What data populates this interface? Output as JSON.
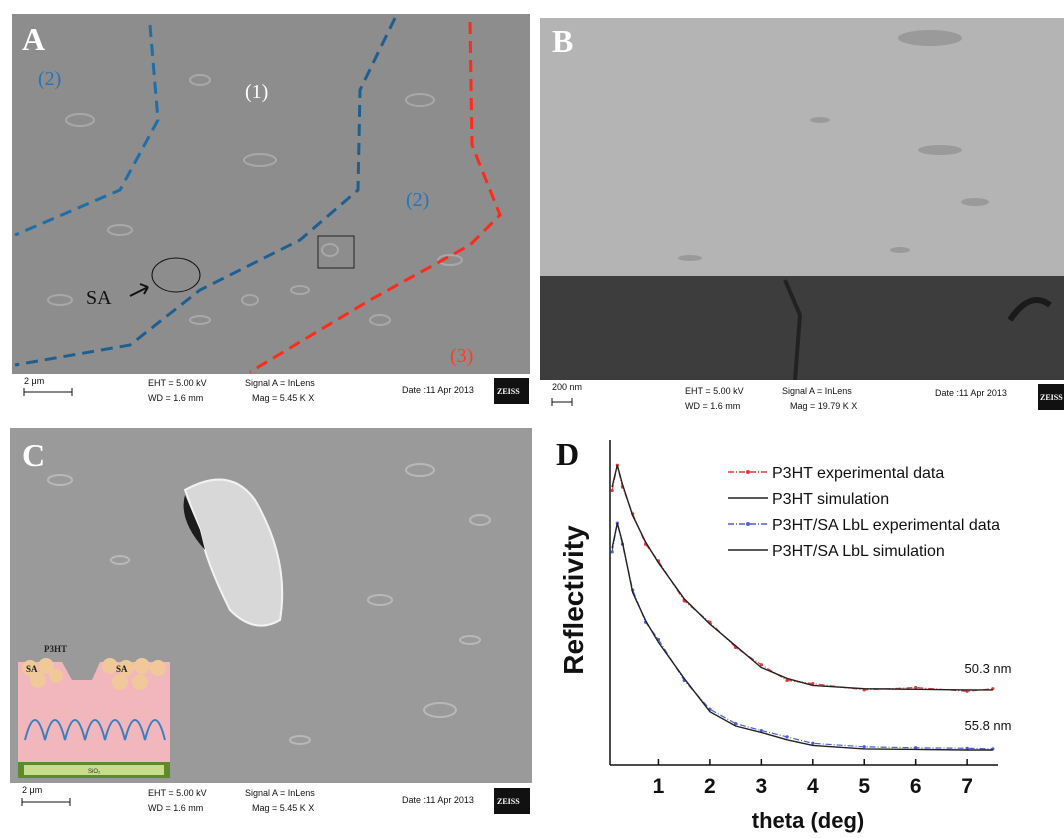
{
  "panels": {
    "a": {
      "label": "A",
      "regions": [
        "(2)",
        "(1)",
        "(2)",
        "(3)"
      ],
      "marker": "SA",
      "scale_bar": "2 μm",
      "info": [
        "EHT = 5.00 kV",
        "WD = 1.6 mm",
        "Signal A = InLens",
        "Mag = 5.45 K X",
        "Date :11 Apr 2013"
      ],
      "brand": "ZEISS"
    },
    "b": {
      "label": "B",
      "scale_bar": "200 nm",
      "info": [
        "EHT = 5.00 kV",
        "WD = 1.6 mm",
        "Signal A = InLens",
        "Mag = 19.79 K X",
        "Date :11 Apr 2013"
      ],
      "brand": "ZEISS"
    },
    "c": {
      "label": "C",
      "scale_bar": "2 μm",
      "info": [
        "EHT = 5.00 kV",
        "WD = 1.6 mm",
        "Signal A = InLens",
        "Mag = 5.45 K X",
        "Date :11 Apr 2013"
      ],
      "brand": "ZEISS",
      "inset": {
        "top_layer": "P3HT",
        "sa_labels": [
          "SA",
          "SA"
        ],
        "substrate": "SiO₂"
      }
    },
    "d": {
      "label": "D"
    }
  },
  "chart_data": {
    "type": "line",
    "xlabel": "theta (deg)",
    "ylabel": "Reflectivity",
    "x": [
      0.1,
      0.2,
      0.3,
      0.5,
      0.75,
      1,
      1.5,
      2,
      2.5,
      3,
      3.5,
      4,
      5,
      6,
      7,
      7.5
    ],
    "xlim": [
      0,
      7.6
    ],
    "xticks": [
      1,
      2,
      3,
      4,
      5,
      6,
      7
    ],
    "ylim": [
      1e-09,
      1
    ],
    "log_y": true,
    "series": [
      {
        "name": "P3HT experimental data",
        "color": "#e03a3a",
        "style": "dash-dot",
        "values": [
          0.04,
          0.2,
          0.05,
          0.009,
          0.0013,
          0.00045,
          3.5e-05,
          9e-06,
          1.8e-06,
          6e-07,
          2.2e-07,
          1.8e-07,
          1.2e-07,
          1.4e-07,
          1.1e-07,
          1.3e-07
        ]
      },
      {
        "name": "P3HT simulation",
        "color": "#222222",
        "style": "solid",
        "values": [
          0.05,
          0.2,
          0.06,
          0.008,
          0.0015,
          0.0004,
          4e-05,
          8e-06,
          2e-06,
          5e-07,
          2.5e-07,
          1.6e-07,
          1.3e-07,
          1.25e-07,
          1.2e-07,
          1.2e-07
        ]
      },
      {
        "name": "P3HT/SA LbL experimental data",
        "color": "#4a5fd0",
        "style": "dash-dot",
        "values": [
          0.0008,
          0.005,
          0.0013,
          7e-05,
          9e-06,
          3e-06,
          2.2e-07,
          3.5e-08,
          1.4e-08,
          9e-09,
          6e-09,
          4e-09,
          3.2e-09,
          3e-09,
          2.9e-09,
          2.8e-09
        ]
      },
      {
        "name": "P3HT/SA LbL simulation",
        "color": "#222222",
        "style": "solid",
        "values": [
          0.001,
          0.005,
          0.0015,
          6e-05,
          1e-05,
          2.5e-06,
          2.5e-07,
          3e-08,
          1.2e-08,
          8e-09,
          5e-09,
          3.5e-09,
          2.8e-09,
          2.7e-09,
          2.6e-09,
          2.6e-09
        ]
      }
    ],
    "annotations": [
      "50.3 nm",
      "55.8 nm"
    ]
  }
}
